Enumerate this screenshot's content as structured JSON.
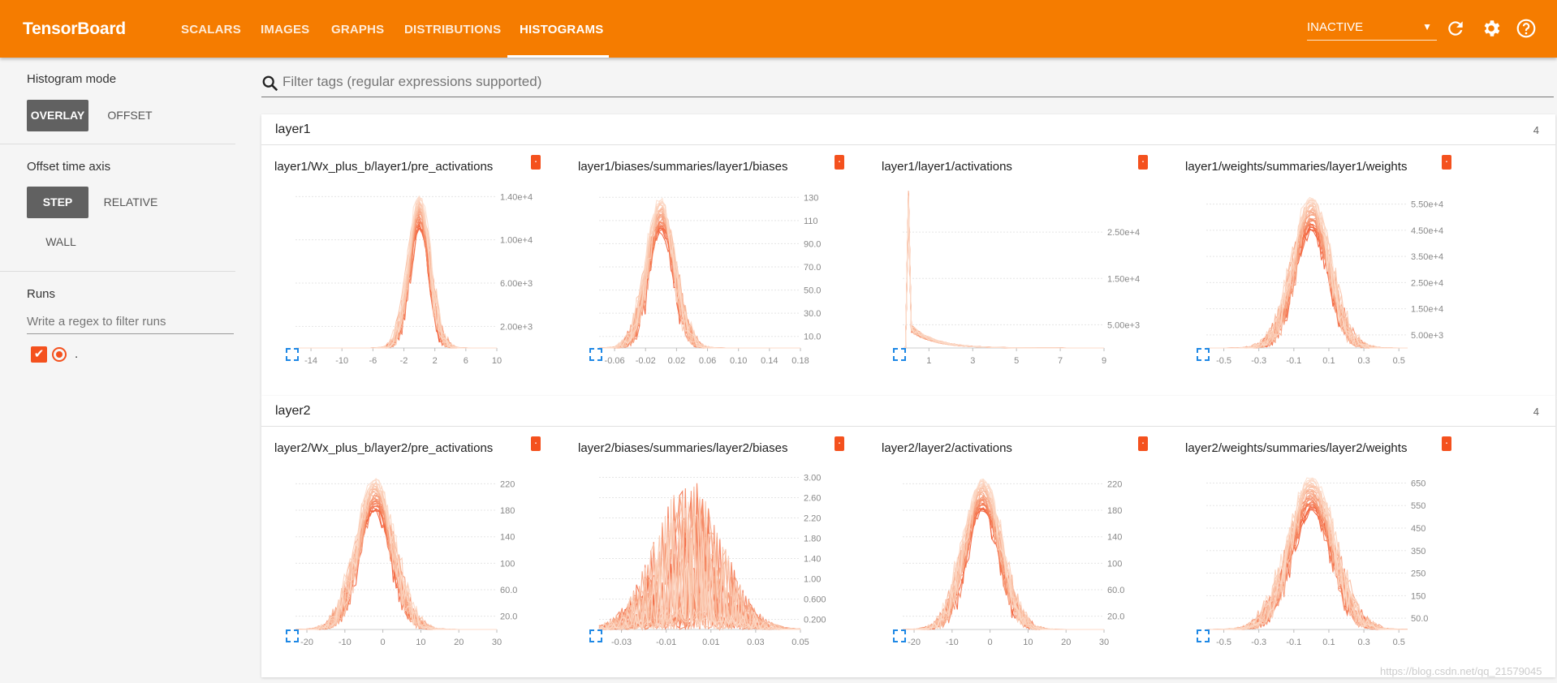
{
  "header": {
    "title": "TensorBoard",
    "tabs": [
      {
        "label": "SCALARS"
      },
      {
        "label": "IMAGES"
      },
      {
        "label": "GRAPHS"
      },
      {
        "label": "DISTRIBUTIONS"
      },
      {
        "label": "HISTOGRAMS",
        "active": true
      }
    ],
    "run_status": "INACTIVE",
    "icons": [
      "refresh-icon",
      "settings-gear-icon",
      "help-icon"
    ]
  },
  "sidebar": {
    "histogram_mode": {
      "title": "Histogram mode",
      "options": [
        "OVERLAY",
        "OFFSET"
      ],
      "selected": "OVERLAY"
    },
    "offset_axis": {
      "title": "Offset time axis",
      "options": [
        "STEP",
        "RELATIVE",
        "WALL"
      ],
      "selected": "STEP"
    },
    "runs": {
      "title": "Runs",
      "filter_placeholder": "Write a regex to filter runs",
      "items": [
        {
          "name": ".",
          "checked": true,
          "color": "#f4511e"
        }
      ]
    }
  },
  "main": {
    "tag_filter_placeholder": "Filter tags (regular expressions supported)"
  },
  "colors": {
    "accent": "#f57c00",
    "series": "#f4511e"
  },
  "watermark": "https://blog.csdn.net/qq_21579045",
  "groups": [
    {
      "name": "layer1",
      "count": "4",
      "cards": [
        {
          "title": "layer1/Wx_plus_b/layer1/pre_activations",
          "chart_data": {
            "type": "area",
            "x_ticks": [
              "-14",
              "-10",
              "-6",
              "-2",
              "2",
              "6",
              "10"
            ],
            "y_ticks": [
              "1.40e+4",
              "1.00e+4",
              "6.00e+3",
              "2.00e+3"
            ],
            "xlim": [
              -16,
              10
            ],
            "ylim": [
              0,
              15000
            ],
            "shape": {
              "kind": "gauss",
              "center": 0,
              "width": 1.3,
              "peak": 14200
            },
            "runs": 30
          }
        },
        {
          "title": "layer1/biases/summaries/layer1/biases",
          "chart_data": {
            "type": "area",
            "x_ticks": [
              "-0.06",
              "-0.02",
              "0.02",
              "0.06",
              "0.10",
              "0.14",
              "0.18"
            ],
            "y_ticks": [
              "130",
              "110",
              "90.0",
              "70.0",
              "50.0",
              "30.0",
              "10.0"
            ],
            "xlim": [
              -0.08,
              0.18
            ],
            "ylim": [
              0,
              140
            ],
            "shape": {
              "kind": "gauss",
              "center": 0,
              "width": 0.017,
              "peak": 130
            },
            "runs": 30
          }
        },
        {
          "title": "layer1/layer1/activations",
          "chart_data": {
            "type": "area",
            "x_ticks": [
              "1",
              "3",
              "5",
              "7",
              "9"
            ],
            "y_ticks": [
              "2.50e+4",
              "1.50e+4",
              "5.00e+3"
            ],
            "xlim": [
              -0.2,
              9
            ],
            "ylim": [
              0,
              35000
            ],
            "shape": {
              "kind": "spike",
              "peak": 34000,
              "tail": 5000,
              "decay": 1.1
            },
            "runs": 30
          }
        },
        {
          "title": "layer1/weights/summaries/layer1/weights",
          "chart_data": {
            "type": "area",
            "x_ticks": [
              "-0.5",
              "-0.3",
              "-0.1",
              "0.1",
              "0.3",
              "0.5"
            ],
            "y_ticks": [
              "5.50e+4",
              "4.50e+4",
              "3.50e+4",
              "2.50e+4",
              "1.50e+4",
              "5.00e+3"
            ],
            "xlim": [
              -0.6,
              0.55
            ],
            "ylim": [
              0,
              62000
            ],
            "shape": {
              "kind": "gauss",
              "center": 0,
              "width": 0.1,
              "peak": 58000
            },
            "runs": 30
          }
        }
      ]
    },
    {
      "name": "layer2",
      "count": "4",
      "cards": [
        {
          "title": "layer2/Wx_plus_b/layer2/pre_activations",
          "chart_data": {
            "type": "area",
            "x_ticks": [
              "-20",
              "-10",
              "0",
              "10",
              "20",
              "30"
            ],
            "y_ticks": [
              "220",
              "180",
              "140",
              "100",
              "60.0",
              "20.0"
            ],
            "xlim": [
              -23,
              30
            ],
            "ylim": [
              0,
              245
            ],
            "shape": {
              "kind": "gauss",
              "center": -2,
              "width": 4.5,
              "peak": 230
            },
            "runs": 30
          }
        },
        {
          "title": "layer2/biases/summaries/layer2/biases",
          "chart_data": {
            "type": "area",
            "x_ticks": [
              "-0.03",
              "-0.01",
              "0.01",
              "0.03",
              "0.05"
            ],
            "y_ticks": [
              "3.00",
              "2.60",
              "2.20",
              "1.80",
              "1.40",
              "1.00",
              "0.600",
              "0.200"
            ],
            "xlim": [
              -0.04,
              0.05
            ],
            "ylim": [
              0,
              3.2
            ],
            "shape": {
              "kind": "spiky",
              "center": 0,
              "width": 0.015,
              "peak": 3.0
            },
            "runs": 30
          }
        },
        {
          "title": "layer2/layer2/activations",
          "chart_data": {
            "type": "area",
            "x_ticks": [
              "-20",
              "-10",
              "0",
              "10",
              "20",
              "30"
            ],
            "y_ticks": [
              "220",
              "180",
              "140",
              "100",
              "60.0",
              "20.0"
            ],
            "xlim": [
              -23,
              30
            ],
            "ylim": [
              0,
              245
            ],
            "shape": {
              "kind": "gauss",
              "center": -2,
              "width": 4.5,
              "peak": 230
            },
            "runs": 30
          }
        },
        {
          "title": "layer2/weights/summaries/layer2/weights",
          "chart_data": {
            "type": "area",
            "x_ticks": [
              "-0.5",
              "-0.3",
              "-0.1",
              "0.1",
              "0.3",
              "0.5"
            ],
            "y_ticks": [
              "650",
              "550",
              "450",
              "350",
              "250",
              "150",
              "50.0"
            ],
            "xlim": [
              -0.6,
              0.55
            ],
            "ylim": [
              0,
              720
            ],
            "shape": {
              "kind": "gauss",
              "center": 0,
              "width": 0.12,
              "peak": 680
            },
            "runs": 30
          }
        }
      ]
    }
  ]
}
